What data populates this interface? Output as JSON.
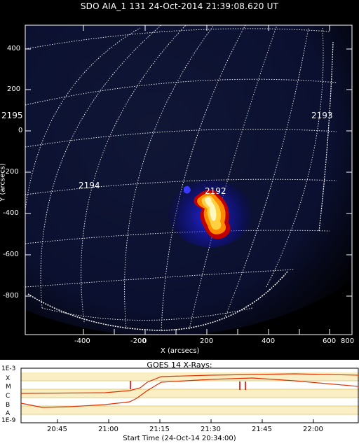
{
  "image": {
    "title": "SDO AIA_1 131 24-Oct-2014 21:39:08.620 UT",
    "x_axis_label": "X (arcsecs)",
    "y_axis_label": "Y (arcsecs)",
    "x_ticks": [
      "-400",
      "-200",
      "0",
      "200",
      "400",
      "600",
      "800"
    ],
    "y_ticks": [
      "400",
      "200",
      "0",
      "-200",
      "-400",
      "-600",
      "-800"
    ],
    "region_labels": [
      "2195",
      "2194",
      "2192",
      "2193"
    ],
    "colors": {
      "grid": "#ffffff",
      "flare_core": "#fff7c0",
      "flare_mid": "#ff8a00",
      "flare_edge": "#c00000",
      "flare_halo": "#1a1aff"
    }
  },
  "goes": {
    "title": "GOES 14 X-Rays:",
    "y_labels": [
      "1E-3",
      "X",
      "M",
      "C",
      "B",
      "A",
      "1E-9"
    ],
    "x_ticks": [
      "20:45",
      "21:00",
      "21:15",
      "21:30",
      "21:45",
      "22:00"
    ],
    "start_time": "Start Time (24-Oct-14 20:34:00)",
    "markers": [
      "I",
      "I I"
    ],
    "colors": {
      "curve": "#e03000",
      "band": "#f5e08a",
      "marker": "#e00000"
    }
  }
}
